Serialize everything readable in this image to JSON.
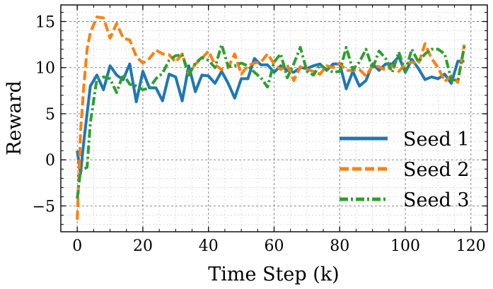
{
  "chart_data": {
    "type": "line",
    "title": "",
    "xlabel": "Time Step (k)",
    "ylabel": "Reward",
    "xlim": [
      -5,
      125
    ],
    "ylim": [
      -7.8,
      16.8
    ],
    "xticks": [
      0,
      20,
      40,
      60,
      80,
      100,
      120
    ],
    "yticks": [
      -5,
      0,
      5,
      10,
      15
    ],
    "xticklabels": [
      "0",
      "20",
      "40",
      "60",
      "80",
      "100",
      "120"
    ],
    "yticklabels": [
      "−5",
      "0",
      "5",
      "10",
      "15"
    ],
    "grid": true,
    "legend_position": "bottom-right",
    "series": [
      {
        "name": "Seed 1",
        "color": "#1f77b4",
        "dash": "solid",
        "x": [
          0,
          1,
          2,
          3,
          4,
          6,
          8,
          10,
          12,
          14,
          16,
          18,
          20,
          22,
          24,
          26,
          28,
          30,
          32,
          34,
          36,
          38,
          40,
          42,
          44,
          46,
          48,
          50,
          52,
          54,
          56,
          58,
          60,
          62,
          64,
          66,
          68,
          70,
          72,
          74,
          76,
          78,
          80,
          82,
          84,
          86,
          88,
          90,
          92,
          94,
          96,
          98,
          100,
          102,
          104,
          106,
          108,
          110,
          112,
          114,
          116,
          118
        ],
        "y": [
          1.0,
          -1.5,
          2.0,
          5.0,
          8.0,
          9.2,
          7.6,
          10.2,
          9.2,
          8.7,
          10.4,
          6.3,
          9.6,
          7.8,
          7.8,
          6.4,
          9.3,
          9.0,
          6.4,
          10.2,
          7.4,
          9.2,
          9.1,
          8.3,
          9.6,
          8.3,
          6.7,
          8.8,
          8.8,
          11.0,
          10.3,
          10.3,
          9.5,
          10.2,
          9.7,
          9.5,
          10.0,
          9.9,
          10.2,
          10.4,
          9.7,
          10.4,
          10.4,
          7.7,
          9.6,
          8.0,
          8.6,
          10.4,
          9.7,
          10.4,
          10.4,
          11.2,
          9.5,
          10.9,
          9.9,
          8.7,
          9.0,
          8.8,
          9.3,
          8.3,
          10.7,
          10.7
        ]
      },
      {
        "name": "Seed 2",
        "color": "#ff7f0e",
        "dash": "dashed",
        "x": [
          0,
          1,
          2,
          3,
          4,
          6,
          8,
          10,
          12,
          14,
          16,
          18,
          20,
          22,
          24,
          26,
          28,
          30,
          32,
          34,
          36,
          38,
          40,
          42,
          44,
          46,
          48,
          50,
          52,
          54,
          56,
          58,
          60,
          62,
          64,
          66,
          68,
          70,
          72,
          74,
          76,
          78,
          80,
          82,
          84,
          86,
          88,
          90,
          92,
          94,
          96,
          98,
          100,
          102,
          104,
          106,
          108,
          110,
          112,
          114,
          116,
          118
        ],
        "y": [
          -6.5,
          3.0,
          8.0,
          12.0,
          13.8,
          15.5,
          15.4,
          13.2,
          14.8,
          13.2,
          13.0,
          11.2,
          10.5,
          11.0,
          11.9,
          11.5,
          11.4,
          10.6,
          11.5,
          9.3,
          10.4,
          11.0,
          11.8,
          10.3,
          9.8,
          10.0,
          11.5,
          9.3,
          10.2,
          10.5,
          10.6,
          11.5,
          10.4,
          9.8,
          10.3,
          8.6,
          10.1,
          9.8,
          9.6,
          9.3,
          10.2,
          10.0,
          10.5,
          9.7,
          9.7,
          9.8,
          9.1,
          10.2,
          10.1,
          9.7,
          10.2,
          9.6,
          10.4,
          10.6,
          10.4,
          12.6,
          11.0,
          10.0,
          8.5,
          9.1,
          8.4,
          12.5
        ]
      },
      {
        "name": "Seed 3",
        "color": "#2ca02c",
        "dash": "dashdot",
        "x": [
          0,
          1,
          2,
          3,
          4,
          6,
          8,
          10,
          12,
          14,
          16,
          18,
          20,
          22,
          24,
          26,
          28,
          30,
          32,
          34,
          36,
          38,
          40,
          42,
          44,
          46,
          48,
          50,
          52,
          54,
          56,
          58,
          60,
          62,
          64,
          66,
          68,
          70,
          72,
          74,
          76,
          78,
          80,
          82,
          84,
          86,
          88,
          90,
          92,
          94,
          96,
          98,
          100,
          102,
          104,
          106,
          108,
          110,
          112,
          114,
          116,
          118
        ],
        "y": [
          -4.2,
          -1.2,
          -1.0,
          -0.8,
          4.0,
          8.8,
          9.0,
          8.8,
          7.3,
          9.3,
          8.2,
          8.0,
          7.6,
          7.8,
          8.8,
          9.4,
          10.8,
          11.3,
          11.4,
          9.2,
          10.5,
          11.1,
          10.8,
          10.0,
          12.5,
          10.1,
          10.2,
          10.5,
          10.2,
          9.5,
          8.9,
          7.9,
          10.6,
          11.5,
          8.9,
          10.4,
          12.2,
          9.6,
          9.2,
          10.3,
          9.8,
          9.5,
          9.6,
          12.2,
          9.8,
          10.6,
          12.0,
          9.9,
          11.8,
          11.0,
          9.5,
          11.7,
          9.6,
          12.0,
          10.6,
          11.5,
          12.0,
          12.0,
          11.5,
          8.7,
          8.6,
          12.3
        ]
      }
    ]
  }
}
